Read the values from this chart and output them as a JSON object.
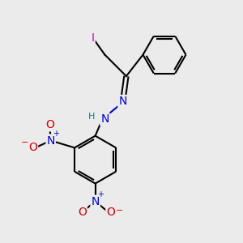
{
  "bg_color": "#ebebeb",
  "bond_color": "#000000",
  "bond_lw": 1.5,
  "atom_colors": {
    "N": "#0000cc",
    "O": "#cc0000",
    "I": "#cc00cc",
    "H": "#008888",
    "C": "#000000"
  },
  "font_size_atom": 10,
  "font_size_small": 8,
  "font_size_super": 7
}
